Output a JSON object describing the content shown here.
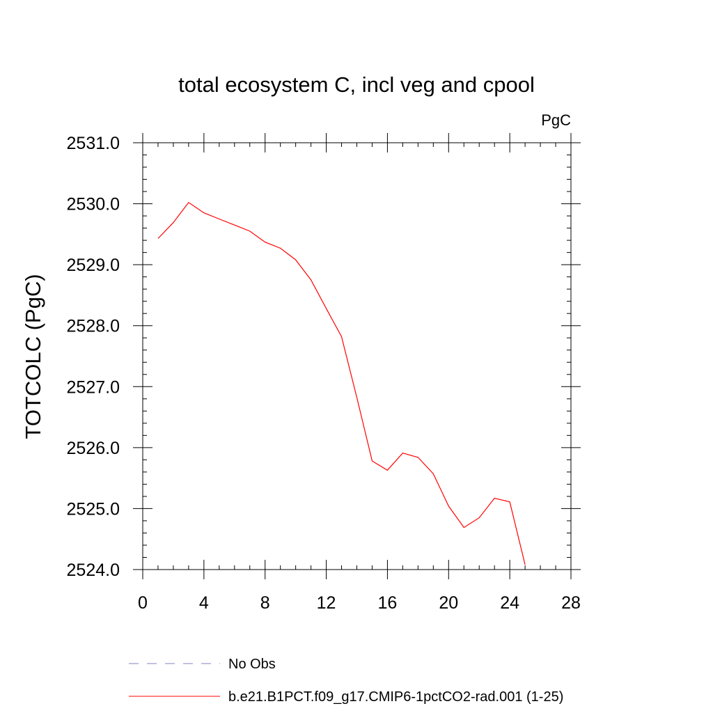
{
  "chart_data": {
    "type": "line",
    "title": "total ecosystem C, incl veg and cpool",
    "units_label": "PgC",
    "ylabel": "TOTCOLC  (PgC)",
    "xlabel": "",
    "xlim": [
      0,
      28
    ],
    "ylim": [
      2524.0,
      2531.0
    ],
    "xticks": [
      0,
      4,
      8,
      12,
      16,
      20,
      24,
      28
    ],
    "xtick_labels": [
      "0",
      "4",
      "8",
      "12",
      "16",
      "20",
      "24",
      "28"
    ],
    "yticks": [
      2524.0,
      2525.0,
      2526.0,
      2527.0,
      2528.0,
      2529.0,
      2530.0,
      2531.0
    ],
    "ytick_labels": [
      "2524.0",
      "2525.0",
      "2526.0",
      "2527.0",
      "2528.0",
      "2529.0",
      "2530.0",
      "2531.0"
    ],
    "grid": false,
    "legend_position": "bottom",
    "colors": {
      "series": "#ff0000",
      "obs": "#8080c0"
    },
    "series": [
      {
        "name": "b.e21.B1PCT.f09_g17.CMIP6-1pctCO2-rad.001 (1-25)",
        "color": "#ff0000",
        "x": [
          1,
          2,
          3,
          4,
          5,
          6,
          7,
          8,
          9,
          10,
          11,
          12,
          13,
          14,
          15,
          16,
          17,
          18,
          19,
          20,
          21,
          22,
          23,
          24,
          25
        ],
        "y": [
          2529.43,
          2529.69,
          2530.02,
          2529.85,
          2529.75,
          2529.65,
          2529.55,
          2529.37,
          2529.27,
          2529.08,
          2528.75,
          2528.28,
          2527.82,
          2526.82,
          2525.78,
          2525.63,
          2525.91,
          2525.84,
          2525.57,
          2525.04,
          2524.69,
          2524.85,
          2525.17,
          2525.11,
          2524.08
        ]
      }
    ],
    "legend": [
      {
        "label": "No Obs",
        "style": "dashed",
        "color": "#8080c0"
      },
      {
        "label": "b.e21.B1PCT.f09_g17.CMIP6-1pctCO2-rad.001 (1-25)",
        "style": "solid",
        "color": "#ff0000"
      }
    ]
  }
}
